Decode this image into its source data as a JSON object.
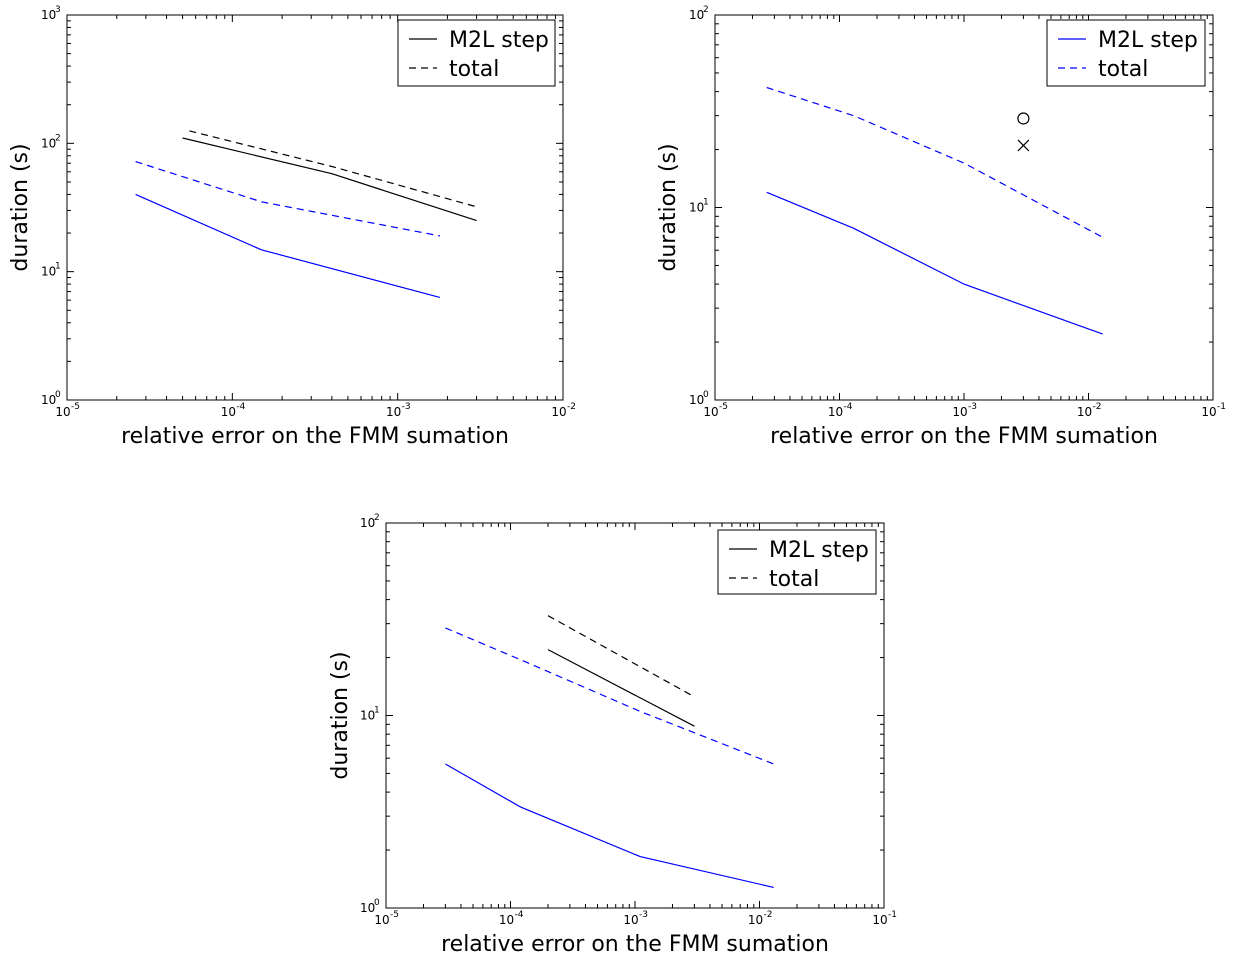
{
  "chart_data": [
    {
      "type": "line",
      "xscale": "log",
      "yscale": "log",
      "xlim": [
        1e-05,
        0.01
      ],
      "ylim": [
        1,
        1000
      ],
      "x_ticks": [
        "10",
        "10",
        "10",
        "10"
      ],
      "x_tick_exponents": [
        "-5",
        "-4",
        "-3",
        "-2"
      ],
      "y_ticks": [
        "10",
        "10",
        "10",
        "10"
      ],
      "y_tick_exponents": [
        "0",
        "1",
        "2",
        "3"
      ],
      "xlabel": "relative error on the FMM sumation",
      "ylabel": "duration (s)",
      "legend": {
        "position": "top-right",
        "entries": [
          {
            "label": "M2L step",
            "color": "#000000",
            "dash": "solid"
          },
          {
            "label": "total",
            "color": "#000000",
            "dash": "dashed"
          }
        ]
      },
      "series": [
        {
          "color": "#000000",
          "dash": "solid",
          "x": [
            5e-05,
            0.0004,
            0.003
          ],
          "y": [
            110,
            58,
            25
          ]
        },
        {
          "color": "#000000",
          "dash": "dashed",
          "x": [
            5.5e-05,
            0.0004,
            0.003
          ],
          "y": [
            125,
            66,
            32
          ]
        },
        {
          "color": "#0000ff",
          "dash": "dashed",
          "x": [
            2.6e-05,
            0.00015,
            0.0018
          ],
          "y": [
            72,
            35,
            19
          ]
        },
        {
          "color": "#0000ff",
          "dash": "solid",
          "x": [
            2.6e-05,
            0.00015,
            0.0018
          ],
          "y": [
            40,
            14.8,
            6.3
          ]
        }
      ],
      "markers": []
    },
    {
      "type": "line",
      "xscale": "log",
      "yscale": "log",
      "xlim": [
        1e-05,
        0.1
      ],
      "ylim": [
        1,
        100
      ],
      "x_ticks": [
        "10",
        "10",
        "10",
        "10",
        "10"
      ],
      "x_tick_exponents": [
        "-5",
        "-4",
        "-3",
        "-2",
        "-1"
      ],
      "y_ticks": [
        "10",
        "10",
        "10"
      ],
      "y_tick_exponents": [
        "0",
        "1",
        "2"
      ],
      "xlabel": "relative error on the FMM sumation",
      "ylabel": "duration (s)",
      "legend": {
        "position": "top-right",
        "entries": [
          {
            "label": "M2L step",
            "color": "#0000ff",
            "dash": "solid"
          },
          {
            "label": "total",
            "color": "#0000ff",
            "dash": "dashed"
          }
        ]
      },
      "series": [
        {
          "color": "#0000ff",
          "dash": "dashed",
          "x": [
            2.6e-05,
            0.00013,
            0.001,
            0.013
          ],
          "y": [
            42,
            30,
            17,
            7
          ]
        },
        {
          "color": "#0000ff",
          "dash": "solid",
          "x": [
            2.6e-05,
            0.00013,
            0.001,
            0.013
          ],
          "y": [
            12,
            7.8,
            4,
            2.2
          ]
        }
      ],
      "markers": [
        {
          "shape": "circle",
          "x": 0.003,
          "y": 29
        },
        {
          "shape": "x",
          "x": 0.003,
          "y": 21
        }
      ]
    },
    {
      "type": "line",
      "xscale": "log",
      "yscale": "log",
      "xlim": [
        1e-05,
        0.1
      ],
      "ylim": [
        1,
        100
      ],
      "x_ticks": [
        "10",
        "10",
        "10",
        "10",
        "10"
      ],
      "x_tick_exponents": [
        "-5",
        "-4",
        "-3",
        "-2",
        "-1"
      ],
      "y_ticks": [
        "10",
        "10",
        "10"
      ],
      "y_tick_exponents": [
        "0",
        "1",
        "2"
      ],
      "xlabel": "relative error on the FMM sumation",
      "ylabel": "duration (s)",
      "legend": {
        "position": "top-right",
        "entries": [
          {
            "label": "M2L step",
            "color": "#000000",
            "dash": "solid"
          },
          {
            "label": "total",
            "color": "#000000",
            "dash": "dashed"
          }
        ]
      },
      "series": [
        {
          "color": "#000000",
          "dash": "dashed",
          "x": [
            0.0002,
            0.003
          ],
          "y": [
            33,
            12.5
          ]
        },
        {
          "color": "#000000",
          "dash": "solid",
          "x": [
            0.0002,
            0.003
          ],
          "y": [
            22,
            8.8
          ]
        },
        {
          "color": "#0000ff",
          "dash": "dashed",
          "x": [
            3e-05,
            0.00012,
            0.0011,
            0.013
          ],
          "y": [
            28.5,
            19.5,
            10.5,
            5.6
          ]
        },
        {
          "color": "#0000ff",
          "dash": "solid",
          "x": [
            3e-05,
            0.00012,
            0.0011,
            0.013
          ],
          "y": [
            5.6,
            3.35,
            1.85,
            1.28
          ]
        }
      ],
      "markers": []
    }
  ]
}
